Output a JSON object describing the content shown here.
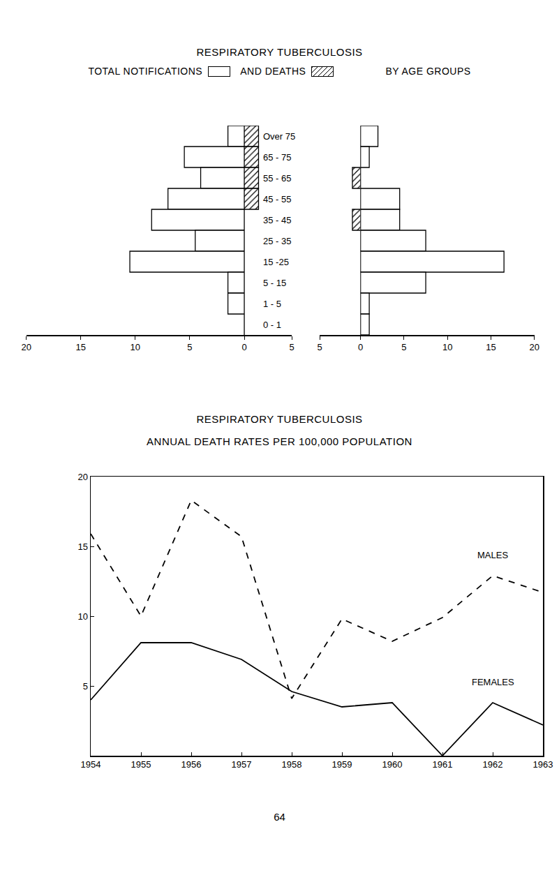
{
  "chart_data": [
    {
      "type": "bar",
      "orientation": "horizontal",
      "title": "RESPIRATORY TUBERCULOSIS",
      "subtitle": "BY AGE GROUPS",
      "categories": [
        "Over 75",
        "65 - 75",
        "55 - 65",
        "45 - 55",
        "35 - 45",
        "25 - 35",
        "15 -25",
        "5 - 15",
        "1 - 5",
        "0 - 1"
      ],
      "grid": false,
      "series": [
        {
          "name": "TOTAL NOTIFICATIONS",
          "color": "#ffffff",
          "marker": "open",
          "panels": [
            {
              "values": [
                1.5,
                5.5,
                4,
                7,
                8.5,
                4.5,
                10.5,
                1.5,
                1.5,
                0
              ],
              "xlim": [
                0,
                20
              ],
              "xticks": [
                0,
                5,
                10,
                15,
                20
              ]
            },
            {
              "values": [
                2,
                1,
                0,
                4.5,
                4.5,
                7.5,
                16.5,
                7.5,
                1,
                1
              ],
              "xlim": [
                0,
                20
              ],
              "xticks": [
                0,
                5,
                10,
                15,
                20
              ]
            }
          ]
        },
        {
          "name": "AND DEATHS",
          "color": "#ffffff",
          "marker": "hatched",
          "panels": [
            {
              "values": [
                1.5,
                1.5,
                1.5,
                1.5,
                0,
                0,
                0,
                0,
                0,
                0
              ],
              "xlim": [
                0,
                5
              ],
              "xticks": [
                5
              ]
            },
            {
              "values": [
                0,
                0,
                1,
                0,
                1,
                0,
                0,
                0,
                0,
                0
              ],
              "xlim": [
                0,
                5
              ],
              "xticks": [
                5
              ]
            }
          ]
        }
      ]
    },
    {
      "type": "line",
      "title": "RESPIRATORY TUBERCULOSIS",
      "subtitle": "ANNUAL DEATH RATES PER 100,000 POPULATION",
      "x": [
        1954,
        1955,
        1956,
        1957,
        1958,
        1959,
        1960,
        1961,
        1962,
        1963
      ],
      "series": [
        {
          "name": "MALES",
          "color": "#000000",
          "line_style": "dashed",
          "values": [
            15.9,
            10,
            18.3,
            15.7,
            4.1,
            9.8,
            8.2,
            9.9,
            12.9,
            11.7
          ]
        },
        {
          "name": "FEMALES",
          "color": "#000000",
          "line_style": "solid",
          "values": [
            4.0,
            8.1,
            8.1,
            6.9,
            4.6,
            3.5,
            3.8,
            0,
            3.8,
            2.2
          ]
        }
      ],
      "xlim": [
        1954,
        1963
      ],
      "xticks": [
        1954,
        1955,
        1956,
        1957,
        1958,
        1959,
        1960,
        1961,
        1962,
        1963
      ],
      "ylim": [
        0,
        20
      ],
      "yticks": [
        5,
        10,
        15,
        20
      ],
      "grid": false
    }
  ],
  "page_number": "64"
}
